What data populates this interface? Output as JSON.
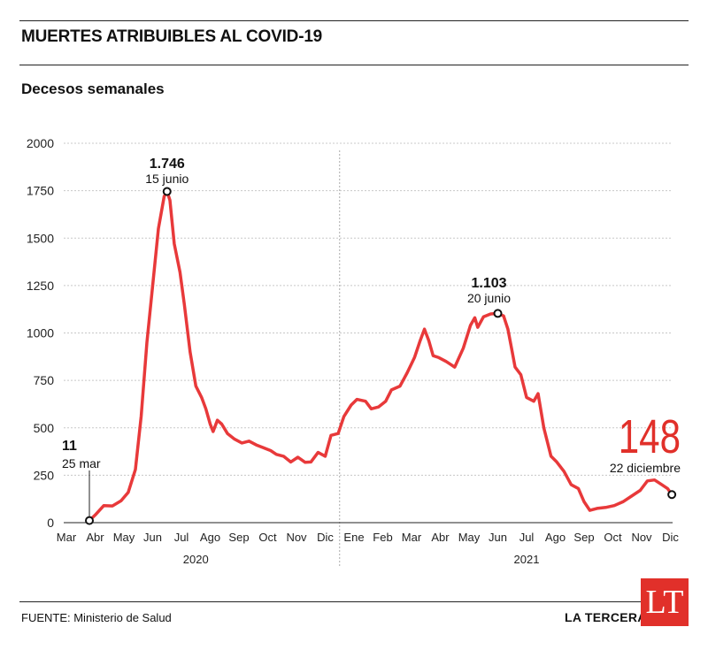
{
  "header": {
    "title": "MUERTES ATRIBUIBLES AL COVID-19",
    "subtitle": "Decesos semanales"
  },
  "footer": {
    "source": "FUENTE: Ministerio de Salud",
    "publisher": "LA TERCERA",
    "logo_text": "LT"
  },
  "colors": {
    "line": "#e8393a",
    "accent": "#e1302a",
    "grid": "#c8c8c8",
    "text": "#111111"
  },
  "chart_data": {
    "type": "line",
    "title": "MUERTES ATRIBUIBLES AL COVID-19",
    "subtitle": "Decesos semanales",
    "ylim": [
      0,
      2000
    ],
    "yticks": [
      "0",
      "250",
      "500",
      "750",
      "1000",
      "1250",
      "1500",
      "1750",
      "2000"
    ],
    "grid": true,
    "month_labels": [
      "Mar",
      "Abr",
      "May",
      "Jun",
      "Jul",
      "Ago",
      "Sep",
      "Oct",
      "Nov",
      "Dic",
      "Ene",
      "Feb",
      "Mar",
      "Abr",
      "May",
      "Jun",
      "Jul",
      "Ago",
      "Sep",
      "Oct",
      "Nov",
      "Dic"
    ],
    "year_labels": [
      "2020",
      "2021"
    ],
    "x_unit": "months since 2020-03-01",
    "series": [
      {
        "points": [
          [
            0.8,
            11
          ],
          [
            1.0,
            40
          ],
          [
            1.3,
            90
          ],
          [
            1.6,
            88
          ],
          [
            1.9,
            115
          ],
          [
            2.15,
            160
          ],
          [
            2.4,
            280
          ],
          [
            2.6,
            560
          ],
          [
            2.8,
            950
          ],
          [
            3.0,
            1250
          ],
          [
            3.2,
            1550
          ],
          [
            3.4,
            1720
          ],
          [
            3.5,
            1746
          ],
          [
            3.6,
            1700
          ],
          [
            3.75,
            1470
          ],
          [
            3.95,
            1320
          ],
          [
            4.1,
            1150
          ],
          [
            4.3,
            900
          ],
          [
            4.5,
            720
          ],
          [
            4.7,
            660
          ],
          [
            4.85,
            600
          ],
          [
            5.0,
            520
          ],
          [
            5.1,
            480
          ],
          [
            5.25,
            540
          ],
          [
            5.4,
            520
          ],
          [
            5.6,
            470
          ],
          [
            5.85,
            440
          ],
          [
            6.1,
            420
          ],
          [
            6.35,
            430
          ],
          [
            6.6,
            410
          ],
          [
            6.85,
            395
          ],
          [
            7.1,
            380
          ],
          [
            7.3,
            360
          ],
          [
            7.55,
            350
          ],
          [
            7.8,
            320
          ],
          [
            8.05,
            345
          ],
          [
            8.3,
            318
          ],
          [
            8.5,
            320
          ],
          [
            8.75,
            370
          ],
          [
            9.0,
            350
          ],
          [
            9.2,
            460
          ],
          [
            9.45,
            470
          ],
          [
            9.65,
            560
          ],
          [
            9.9,
            620
          ],
          [
            10.1,
            650
          ],
          [
            10.4,
            640
          ],
          [
            10.6,
            600
          ],
          [
            10.85,
            610
          ],
          [
            11.1,
            640
          ],
          [
            11.3,
            700
          ],
          [
            11.6,
            720
          ],
          [
            11.85,
            790
          ],
          [
            12.1,
            870
          ],
          [
            12.3,
            960
          ],
          [
            12.45,
            1020
          ],
          [
            12.6,
            960
          ],
          [
            12.75,
            880
          ],
          [
            12.95,
            870
          ],
          [
            13.2,
            850
          ],
          [
            13.5,
            820
          ],
          [
            13.8,
            920
          ],
          [
            14.05,
            1040
          ],
          [
            14.2,
            1080
          ],
          [
            14.3,
            1030
          ],
          [
            14.5,
            1085
          ],
          [
            14.75,
            1100
          ],
          [
            15.0,
            1103
          ],
          [
            15.2,
            1090
          ],
          [
            15.35,
            1020
          ],
          [
            15.5,
            900
          ],
          [
            15.6,
            820
          ],
          [
            15.8,
            780
          ],
          [
            16.0,
            660
          ],
          [
            16.25,
            640
          ],
          [
            16.4,
            680
          ],
          [
            16.6,
            500
          ],
          [
            16.85,
            350
          ],
          [
            17.05,
            320
          ],
          [
            17.3,
            270
          ],
          [
            17.55,
            200
          ],
          [
            17.8,
            180
          ],
          [
            18.0,
            110
          ],
          [
            18.2,
            65
          ],
          [
            18.45,
            75
          ],
          [
            18.75,
            80
          ],
          [
            19.05,
            90
          ],
          [
            19.35,
            110
          ],
          [
            19.65,
            140
          ],
          [
            19.95,
            170
          ],
          [
            20.2,
            220
          ],
          [
            20.45,
            225
          ],
          [
            20.7,
            200
          ],
          [
            20.9,
            180
          ],
          [
            21.05,
            148
          ]
        ]
      }
    ],
    "annotations": [
      {
        "value": "11",
        "label": "25 mar",
        "x": 0.8,
        "y": 11
      },
      {
        "value": "1.746",
        "label": "15 junio",
        "x": 3.5,
        "y": 1746
      },
      {
        "value": "1.103",
        "label": "20 junio",
        "x": 15.0,
        "y": 1103
      },
      {
        "value": "148",
        "label": "22 diciembre",
        "x": 21.05,
        "y": 148
      }
    ]
  }
}
